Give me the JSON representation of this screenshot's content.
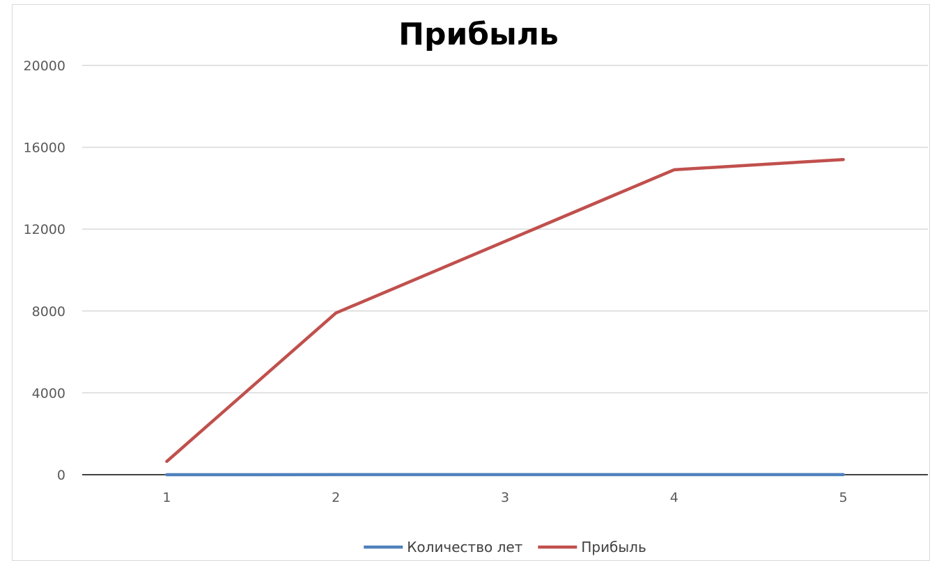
{
  "chart_data": {
    "type": "line",
    "title": "Прибыль",
    "xlabel": "",
    "ylabel": "",
    "categories": [
      "1",
      "2",
      "3",
      "4",
      "5"
    ],
    "ylim": [
      0,
      20000
    ],
    "yticks": [
      0,
      4000,
      8000,
      12000,
      16000,
      20000
    ],
    "grid": true,
    "legend_position": "bottom",
    "series": [
      {
        "name": "Количество лет",
        "values": [
          1,
          2,
          3,
          4,
          5
        ],
        "color": "#4f81bd"
      },
      {
        "name": "Прибыль",
        "values": [
          650,
          7900,
          11400,
          14900,
          15400
        ],
        "color": "#c0504d"
      }
    ]
  }
}
